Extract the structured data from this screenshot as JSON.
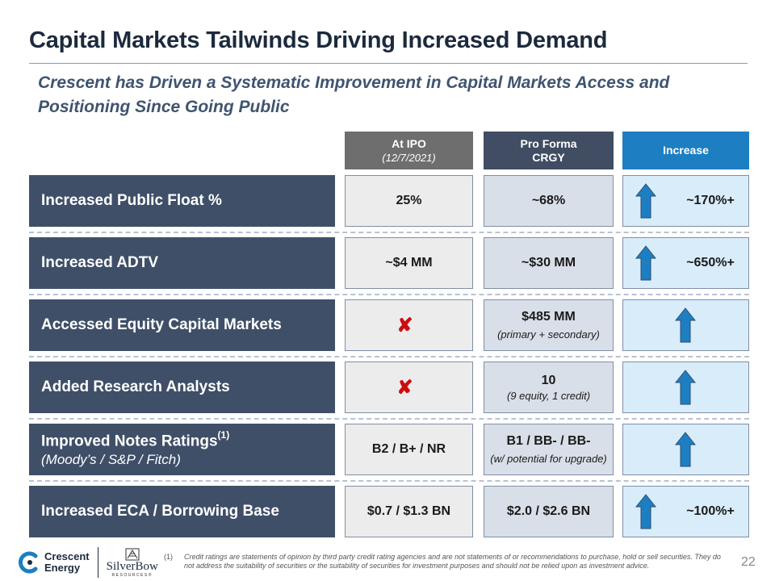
{
  "title": "Capital Markets Tailwinds Driving Increased Demand",
  "subtitle": "Crescent has Driven a Systematic Improvement in Capital Markets Access and Positioning Since Going Public",
  "columns": {
    "ipo": {
      "label": "At IPO",
      "sub": "(12/7/2021)"
    },
    "proforma": {
      "label": "Pro Forma",
      "sub": "CRGY"
    },
    "increase": {
      "label": "Increase"
    }
  },
  "rows": [
    {
      "label": "Increased Public Float %",
      "ipo": "25%",
      "proforma": "~68%",
      "proforma_sub": "",
      "increase": "~170%+"
    },
    {
      "label": "Increased ADTV",
      "ipo": "~$4 MM",
      "proforma": "~$30 MM",
      "proforma_sub": "",
      "increase": "~650%+"
    },
    {
      "label": "Accessed Equity Capital Markets",
      "ipo": "✘",
      "proforma": "$485 MM",
      "proforma_sub": "(primary + secondary)",
      "increase": ""
    },
    {
      "label": "Added Research Analysts",
      "ipo": "✘",
      "proforma": "10",
      "proforma_sub": "(9 equity, 1 credit)",
      "increase": ""
    },
    {
      "label": "Improved Notes Ratings",
      "label_sup": "(1)",
      "label_sub": "(Moody’s / S&P / Fitch)",
      "ipo": "B2 / B+ / NR",
      "proforma": "B1 / BB- / BB-",
      "proforma_sub": "(w/ potential for upgrade)",
      "increase": ""
    },
    {
      "label": "Increased ECA / Borrowing Base",
      "ipo": "$0.7 / $1.3 BN",
      "proforma": "$2.0 / $2.6 BN",
      "proforma_sub": "",
      "increase": "~100%+"
    }
  ],
  "footer": {
    "logo1_line1": "Crescent",
    "logo1_line2": "Energy",
    "logo2_name": "SilverBow",
    "logo2_sub": "RESOURCES®",
    "footnote_num": "(1)",
    "footnote": "Credit ratings are statements of opinion by third party credit rating agencies and are not statements of or recommendations to purchase, hold or sell securities. They do not address the suitability of securities or the suitability of securities for investment purposes and should not be relied upon as investment advice.",
    "page": "22"
  },
  "colors": {
    "arrow": "#1d7fc2",
    "xmark": "#cc0d0d",
    "label_bg": "#3f4f68"
  }
}
